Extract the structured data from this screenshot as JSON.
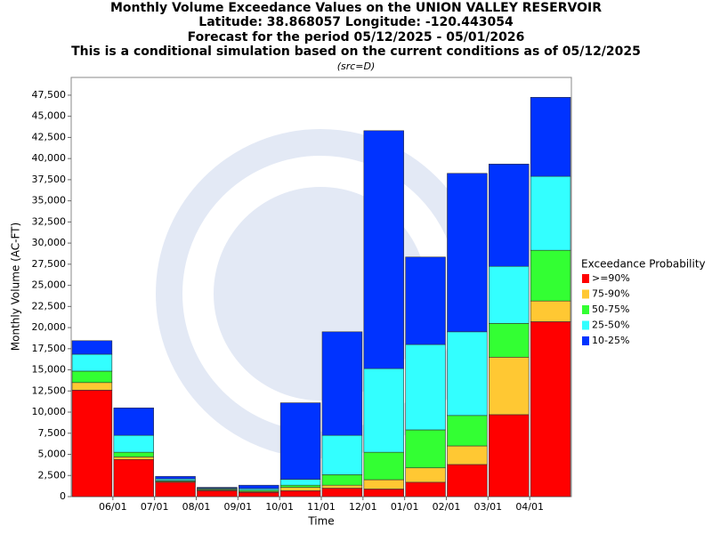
{
  "chart_data": {
    "type": "stacked_bar",
    "title": [
      "Monthly Volume Exceedance Values on the UNION VALLEY RESERVOIR",
      "Latitude: 38.868057 Longitude: -120.443054",
      "Forecast for the period 05/12/2025 - 05/01/2026",
      "This is a conditional simulation based on the current conditions as of 05/12/2025"
    ],
    "subtitle": "(src=D)",
    "x_label": "Time",
    "y_label": "Monthly Volume (AC-FT)",
    "legend_title": "Exceedance Probability",
    "legend_position": "right",
    "grid": false,
    "categories": [
      "06/01",
      "07/01",
      "08/01",
      "09/01",
      "10/01",
      "11/01",
      "12/01",
      "01/01",
      "02/01",
      "03/01",
      "04/01",
      null
    ],
    "ylim": [
      0,
      49600
    ],
    "yticks": [
      0,
      {
        "value": 2500,
        "label": "2,500"
      },
      {
        "value": 5000,
        "label": "5,000"
      },
      {
        "value": 7500,
        "label": "7,500"
      },
      {
        "value": 10000,
        "label": "10,000"
      },
      {
        "value": 12500,
        "label": "12,500"
      },
      {
        "value": 15000,
        "label": "15,000"
      },
      {
        "value": 17500,
        "label": "17,500"
      },
      {
        "value": 20000,
        "label": "20,000"
      },
      {
        "value": 22500,
        "label": "22,500"
      },
      {
        "value": 25000,
        "label": "25,000"
      },
      {
        "value": 27500,
        "label": "27,500"
      },
      {
        "value": 30000,
        "label": "30,000"
      },
      {
        "value": 32500,
        "label": "32,500"
      },
      {
        "value": 35000,
        "label": "35,000"
      },
      {
        "value": 37500,
        "label": "37,500"
      },
      {
        "value": 40000,
        "label": "40,000"
      },
      {
        "value": 42500,
        "label": "42,500"
      },
      {
        "value": 45000,
        "label": "45,000"
      },
      {
        "value": 47500,
        "label": "47,500"
      }
    ],
    "series": [
      {
        "name": ">=90%",
        "color": "#ff0000",
        "values": [
          12600,
          4400,
          1700,
          700,
          500,
          700,
          1000,
          900,
          1700,
          3800,
          9700,
          20700
        ]
      },
      {
        "name": "75-90%",
        "color": "#ffc833",
        "values": [
          900,
          300,
          100,
          100,
          100,
          400,
          350,
          1100,
          1700,
          2200,
          6800,
          2450
        ]
      },
      {
        "name": "50-75%",
        "color": "#33ff33",
        "values": [
          1350,
          550,
          100,
          100,
          150,
          250,
          1250,
          3250,
          4500,
          3600,
          4000,
          6000
        ]
      },
      {
        "name": "25-50%",
        "color": "#33ffff",
        "values": [
          2000,
          2000,
          200,
          100,
          200,
          700,
          4650,
          9900,
          10100,
          9900,
          6750,
          8750
        ]
      },
      {
        "name": "10-25%",
        "color": "#0033ff",
        "values": [
          1600,
          3250,
          300,
          100,
          400,
          9050,
          12250,
          28150,
          10350,
          18750,
          12100,
          9350
        ]
      }
    ]
  }
}
